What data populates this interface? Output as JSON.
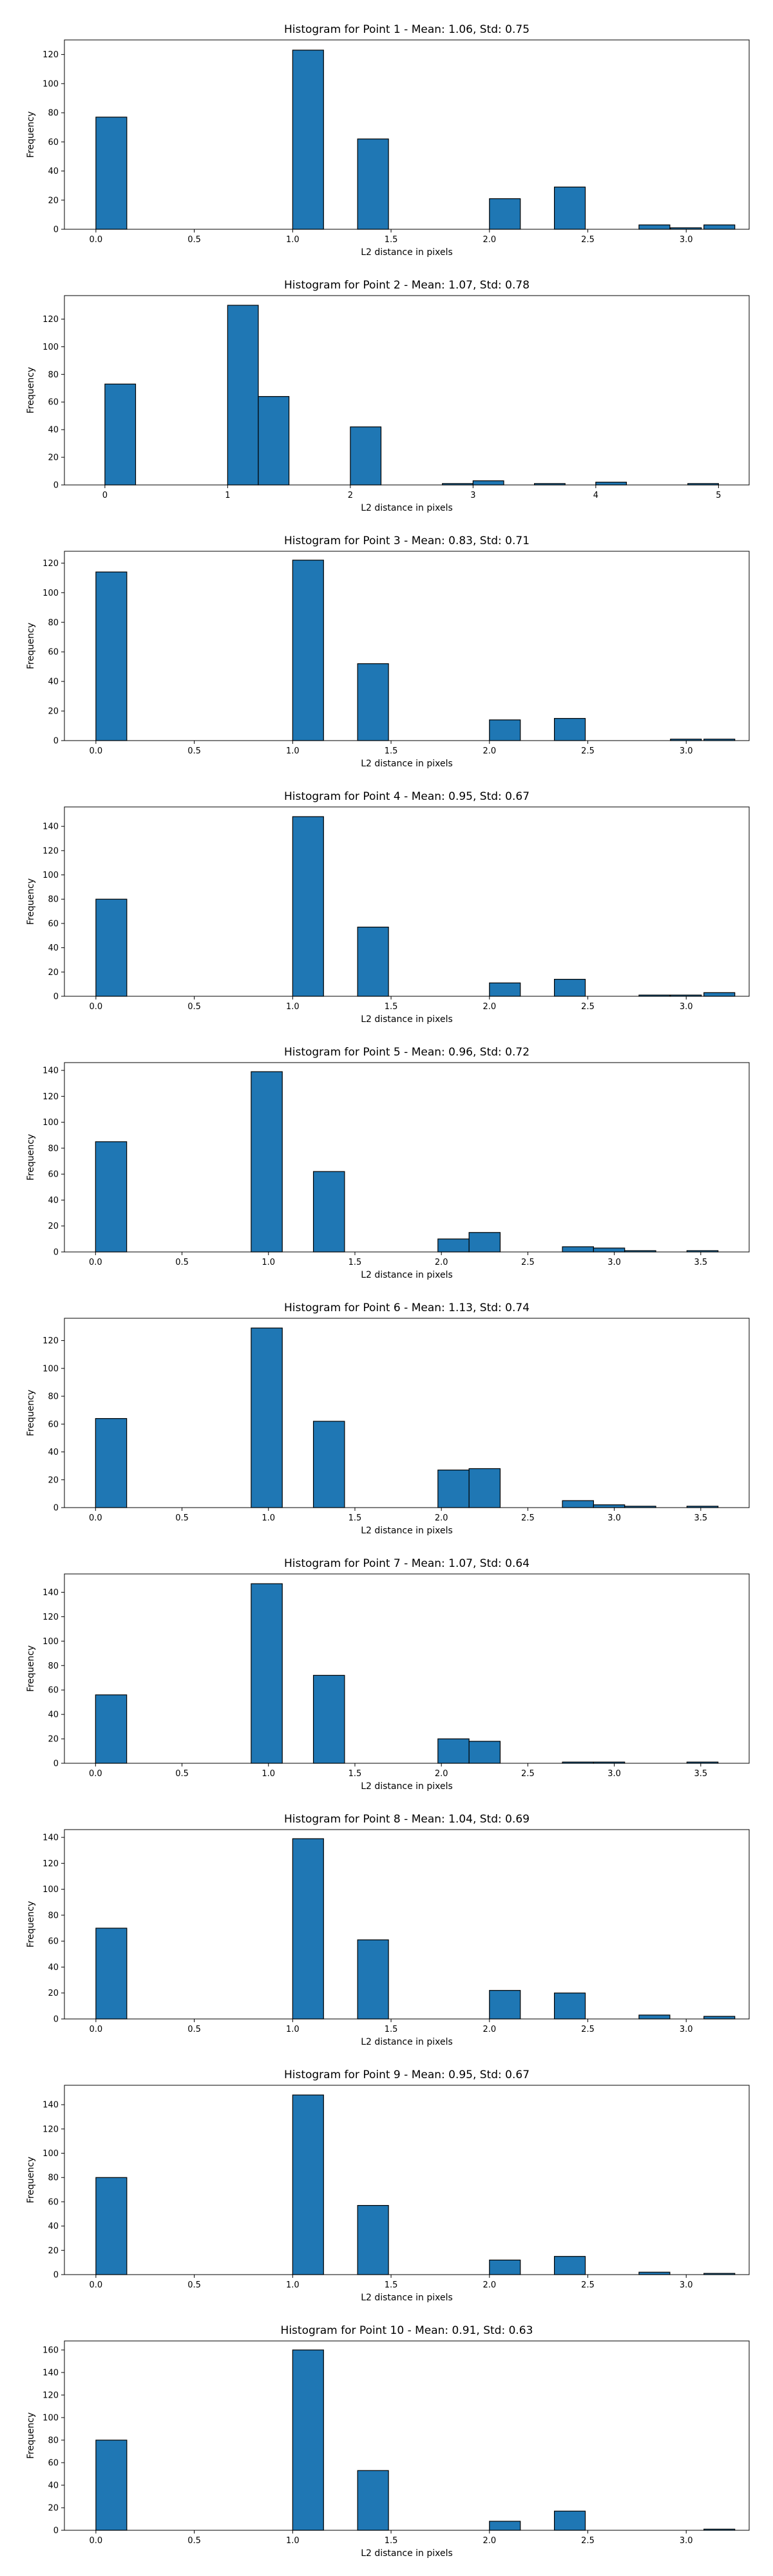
{
  "chart_data": [
    {
      "type": "bar",
      "title": "Histogram for Point 1 - Mean: 1.06, Std: 0.75",
      "xlabel": "L2 distance in pixels",
      "ylabel": "Frequency",
      "xlim": [
        -0.16,
        3.32
      ],
      "ylim": [
        0,
        130
      ],
      "xticks": [
        0.0,
        0.5,
        1.0,
        1.5,
        2.0,
        2.5,
        3.0
      ],
      "xtick_labels": [
        "0.0",
        "0.5",
        "1.0",
        "1.5",
        "2.0",
        "2.5",
        "3.0"
      ],
      "yticks": [
        0,
        20,
        40,
        60,
        80,
        100,
        120
      ],
      "bin_width": 0.157,
      "bins": [
        {
          "x": 0.0,
          "value": 77
        },
        {
          "x": 1.0,
          "value": 123
        },
        {
          "x": 1.33,
          "value": 62
        },
        {
          "x": 2.0,
          "value": 21
        },
        {
          "x": 2.33,
          "value": 29
        },
        {
          "x": 2.76,
          "value": 3
        },
        {
          "x": 2.92,
          "value": 1
        },
        {
          "x": 3.09,
          "value": 3
        }
      ]
    },
    {
      "type": "bar",
      "title": "Histogram for Point 2 - Mean: 1.07, Std: 0.78",
      "xlabel": "L2 distance in pixels",
      "ylabel": "Frequency",
      "xlim": [
        -0.33,
        5.25
      ],
      "ylim": [
        0,
        137
      ],
      "xticks": [
        0,
        1,
        2,
        3,
        4,
        5
      ],
      "xtick_labels": [
        "0",
        "1",
        "2",
        "3",
        "4",
        "5"
      ],
      "yticks": [
        0,
        20,
        40,
        60,
        80,
        100,
        120
      ],
      "bin_width": 0.25,
      "bins": [
        {
          "x": 0.0,
          "value": 73
        },
        {
          "x": 1.0,
          "value": 130
        },
        {
          "x": 1.25,
          "value": 64
        },
        {
          "x": 2.0,
          "value": 42
        },
        {
          "x": 2.75,
          "value": 1
        },
        {
          "x": 3.0,
          "value": 3
        },
        {
          "x": 3.5,
          "value": 1
        },
        {
          "x": 4.0,
          "value": 2
        },
        {
          "x": 4.75,
          "value": 1
        }
      ]
    },
    {
      "type": "bar",
      "title": "Histogram for Point 3 - Mean: 0.83, Std: 0.71",
      "xlabel": "L2 distance in pixels",
      "ylabel": "Frequency",
      "xlim": [
        -0.16,
        3.32
      ],
      "ylim": [
        0,
        128
      ],
      "xticks": [
        0.0,
        0.5,
        1.0,
        1.5,
        2.0,
        2.5,
        3.0
      ],
      "xtick_labels": [
        "0.0",
        "0.5",
        "1.0",
        "1.5",
        "2.0",
        "2.5",
        "3.0"
      ],
      "yticks": [
        0,
        20,
        40,
        60,
        80,
        100,
        120
      ],
      "bin_width": 0.157,
      "bins": [
        {
          "x": 0.0,
          "value": 114
        },
        {
          "x": 1.0,
          "value": 122
        },
        {
          "x": 1.33,
          "value": 52
        },
        {
          "x": 2.0,
          "value": 14
        },
        {
          "x": 2.33,
          "value": 15
        },
        {
          "x": 2.92,
          "value": 1
        },
        {
          "x": 3.09,
          "value": 1
        }
      ]
    },
    {
      "type": "bar",
      "title": "Histogram for Point 4 - Mean: 0.95, Std: 0.67",
      "xlabel": "L2 distance in pixels",
      "ylabel": "Frequency",
      "xlim": [
        -0.16,
        3.32
      ],
      "ylim": [
        0,
        156
      ],
      "xticks": [
        0.0,
        0.5,
        1.0,
        1.5,
        2.0,
        2.5,
        3.0
      ],
      "xtick_labels": [
        "0.0",
        "0.5",
        "1.0",
        "1.5",
        "2.0",
        "2.5",
        "3.0"
      ],
      "yticks": [
        0,
        20,
        40,
        60,
        80,
        100,
        120,
        140
      ],
      "bin_width": 0.157,
      "bins": [
        {
          "x": 0.0,
          "value": 80
        },
        {
          "x": 1.0,
          "value": 148
        },
        {
          "x": 1.33,
          "value": 57
        },
        {
          "x": 2.0,
          "value": 11
        },
        {
          "x": 2.33,
          "value": 14
        },
        {
          "x": 2.76,
          "value": 1
        },
        {
          "x": 2.92,
          "value": 1
        },
        {
          "x": 3.09,
          "value": 3
        }
      ]
    },
    {
      "type": "bar",
      "title": "Histogram for Point 5 - Mean: 0.96, Std: 0.72",
      "xlabel": "L2 distance in pixels",
      "ylabel": "Frequency",
      "xlim": [
        -0.18,
        3.78
      ],
      "ylim": [
        0,
        146
      ],
      "xticks": [
        0.0,
        0.5,
        1.0,
        1.5,
        2.0,
        2.5,
        3.0,
        3.5
      ],
      "xtick_labels": [
        "0.0",
        "0.5",
        "1.0",
        "1.5",
        "2.0",
        "2.5",
        "3.0",
        "3.5"
      ],
      "yticks": [
        0,
        20,
        40,
        60,
        80,
        100,
        120,
        140
      ],
      "bin_width": 0.18,
      "bins": [
        {
          "x": 0.0,
          "value": 85
        },
        {
          "x": 0.9,
          "value": 139
        },
        {
          "x": 1.26,
          "value": 62
        },
        {
          "x": 1.98,
          "value": 10
        },
        {
          "x": 2.16,
          "value": 15
        },
        {
          "x": 2.7,
          "value": 4
        },
        {
          "x": 2.88,
          "value": 3
        },
        {
          "x": 3.06,
          "value": 1
        },
        {
          "x": 3.42,
          "value": 1
        }
      ]
    },
    {
      "type": "bar",
      "title": "Histogram for Point 6 - Mean: 1.13, Std: 0.74",
      "xlabel": "L2 distance in pixels",
      "ylabel": "Frequency",
      "xlim": [
        -0.18,
        3.78
      ],
      "ylim": [
        0,
        136
      ],
      "xticks": [
        0.0,
        0.5,
        1.0,
        1.5,
        2.0,
        2.5,
        3.0,
        3.5
      ],
      "xtick_labels": [
        "0.0",
        "0.5",
        "1.0",
        "1.5",
        "2.0",
        "2.5",
        "3.0",
        "3.5"
      ],
      "yticks": [
        0,
        20,
        40,
        60,
        80,
        100,
        120
      ],
      "bin_width": 0.18,
      "bins": [
        {
          "x": 0.0,
          "value": 64
        },
        {
          "x": 0.9,
          "value": 129
        },
        {
          "x": 1.26,
          "value": 62
        },
        {
          "x": 1.98,
          "value": 27
        },
        {
          "x": 2.16,
          "value": 28
        },
        {
          "x": 2.7,
          "value": 5
        },
        {
          "x": 2.88,
          "value": 2
        },
        {
          "x": 3.06,
          "value": 1
        },
        {
          "x": 3.42,
          "value": 1
        }
      ]
    },
    {
      "type": "bar",
      "title": "Histogram for Point 7 - Mean: 1.07, Std: 0.64",
      "xlabel": "L2 distance in pixels",
      "ylabel": "Frequency",
      "xlim": [
        -0.18,
        3.78
      ],
      "ylim": [
        0,
        155
      ],
      "xticks": [
        0.0,
        0.5,
        1.0,
        1.5,
        2.0,
        2.5,
        3.0,
        3.5
      ],
      "xtick_labels": [
        "0.0",
        "0.5",
        "1.0",
        "1.5",
        "2.0",
        "2.5",
        "3.0",
        "3.5"
      ],
      "yticks": [
        0,
        20,
        40,
        60,
        80,
        100,
        120,
        140
      ],
      "bin_width": 0.18,
      "bins": [
        {
          "x": 0.0,
          "value": 56
        },
        {
          "x": 0.9,
          "value": 147
        },
        {
          "x": 1.26,
          "value": 72
        },
        {
          "x": 1.98,
          "value": 20
        },
        {
          "x": 2.16,
          "value": 18
        },
        {
          "x": 2.7,
          "value": 1
        },
        {
          "x": 2.88,
          "value": 1
        },
        {
          "x": 3.42,
          "value": 1
        }
      ]
    },
    {
      "type": "bar",
      "title": "Histogram for Point 8 - Mean: 1.04, Std: 0.69",
      "xlabel": "L2 distance in pixels",
      "ylabel": "Frequency",
      "xlim": [
        -0.16,
        3.32
      ],
      "ylim": [
        0,
        146
      ],
      "xticks": [
        0.0,
        0.5,
        1.0,
        1.5,
        2.0,
        2.5,
        3.0
      ],
      "xtick_labels": [
        "0.0",
        "0.5",
        "1.0",
        "1.5",
        "2.0",
        "2.5",
        "3.0"
      ],
      "yticks": [
        0,
        20,
        40,
        60,
        80,
        100,
        120,
        140
      ],
      "bin_width": 0.157,
      "bins": [
        {
          "x": 0.0,
          "value": 70
        },
        {
          "x": 1.0,
          "value": 139
        },
        {
          "x": 1.33,
          "value": 61
        },
        {
          "x": 2.0,
          "value": 22
        },
        {
          "x": 2.33,
          "value": 20
        },
        {
          "x": 2.76,
          "value": 3
        },
        {
          "x": 3.09,
          "value": 2
        }
      ]
    },
    {
      "type": "bar",
      "title": "Histogram for Point 9 - Mean: 0.95, Std: 0.67",
      "xlabel": "L2 distance in pixels",
      "ylabel": "Frequency",
      "xlim": [
        -0.16,
        3.32
      ],
      "ylim": [
        0,
        156
      ],
      "xticks": [
        0.0,
        0.5,
        1.0,
        1.5,
        2.0,
        2.5,
        3.0
      ],
      "xtick_labels": [
        "0.0",
        "0.5",
        "1.0",
        "1.5",
        "2.0",
        "2.5",
        "3.0"
      ],
      "yticks": [
        0,
        20,
        40,
        60,
        80,
        100,
        120,
        140
      ],
      "bin_width": 0.157,
      "bins": [
        {
          "x": 0.0,
          "value": 80
        },
        {
          "x": 1.0,
          "value": 148
        },
        {
          "x": 1.33,
          "value": 57
        },
        {
          "x": 2.0,
          "value": 12
        },
        {
          "x": 2.33,
          "value": 15
        },
        {
          "x": 2.76,
          "value": 2
        },
        {
          "x": 3.09,
          "value": 1
        }
      ]
    },
    {
      "type": "bar",
      "title": "Histogram for Point 10 - Mean: 0.91, Std: 0.63",
      "xlabel": "L2 distance in pixels",
      "ylabel": "Frequency",
      "xlim": [
        -0.16,
        3.32
      ],
      "ylim": [
        0,
        168
      ],
      "xticks": [
        0.0,
        0.5,
        1.0,
        1.5,
        2.0,
        2.5,
        3.0
      ],
      "xtick_labels": [
        "0.0",
        "0.5",
        "1.0",
        "1.5",
        "2.0",
        "2.5",
        "3.0"
      ],
      "yticks": [
        0,
        20,
        40,
        60,
        80,
        100,
        120,
        140,
        160
      ],
      "bin_width": 0.157,
      "bins": [
        {
          "x": 0.0,
          "value": 80
        },
        {
          "x": 1.0,
          "value": 160
        },
        {
          "x": 1.33,
          "value": 53
        },
        {
          "x": 2.0,
          "value": 8
        },
        {
          "x": 2.33,
          "value": 17
        },
        {
          "x": 3.09,
          "value": 1
        }
      ]
    }
  ]
}
